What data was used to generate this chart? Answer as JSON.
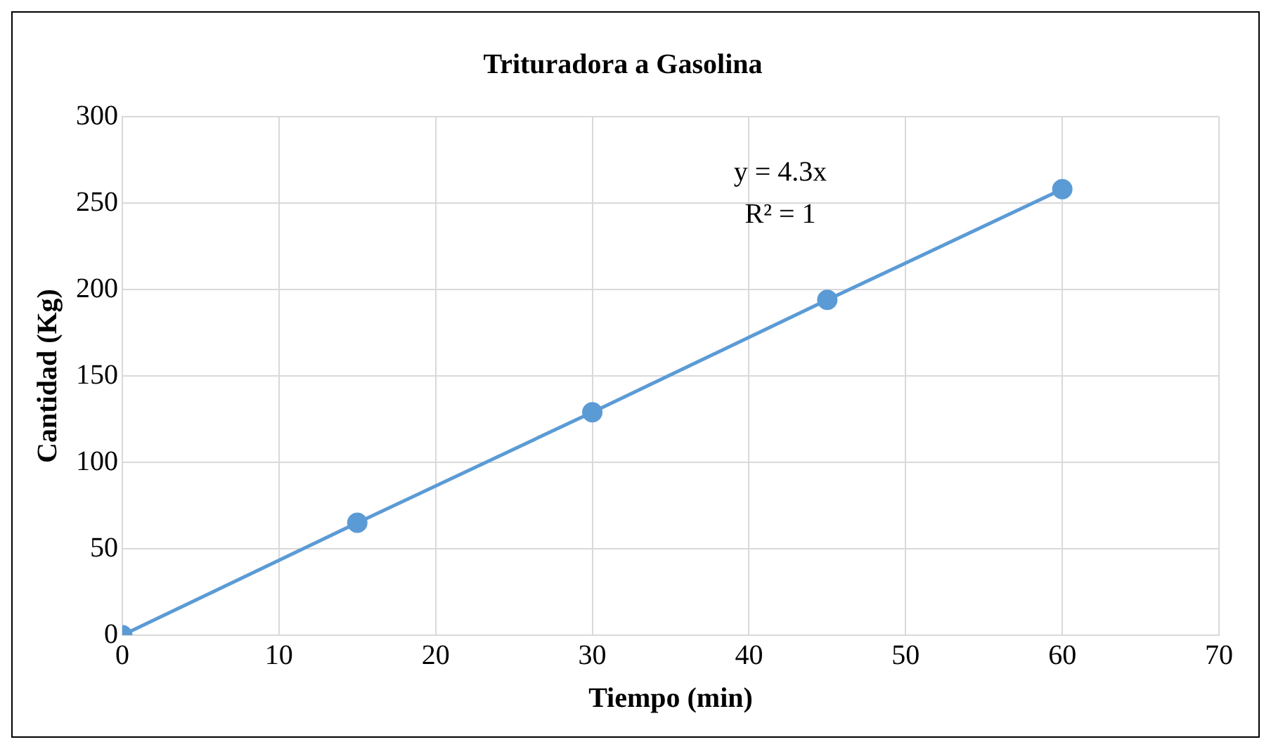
{
  "chart_data": {
    "type": "line",
    "title": "Trituradora a Gasolina",
    "xlabel": "Tiempo (min)",
    "ylabel": "Cantidad (Kg)",
    "x": [
      0,
      15,
      30,
      45,
      60
    ],
    "series": [
      {
        "color": "#5b9bd5",
        "values": [
          0,
          65,
          129,
          194,
          258
        ]
      }
    ],
    "xlim": [
      0,
      70
    ],
    "xticks": [
      0,
      10,
      20,
      30,
      40,
      50,
      60,
      70
    ],
    "ylim": [
      0,
      300
    ],
    "yticks": [
      0,
      50,
      100,
      150,
      200,
      250,
      300
    ],
    "grid": true,
    "legend": false,
    "marker": "circle",
    "line_style": "solid",
    "annotations": [
      "y = 4.3x",
      "R² = 1"
    ]
  }
}
